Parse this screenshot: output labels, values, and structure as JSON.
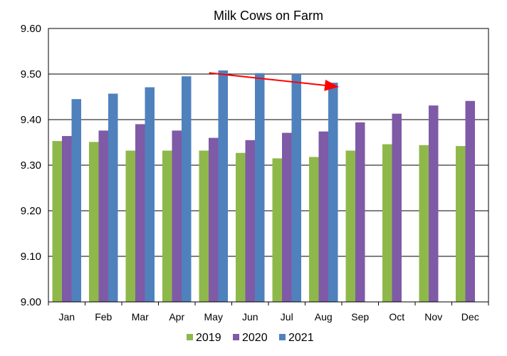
{
  "chart_data": {
    "type": "bar",
    "title": "Milk Cows on Farm",
    "xlabel": "",
    "ylabel": "",
    "categories": [
      "Jan",
      "Feb",
      "Mar",
      "Apr",
      "May",
      "Jun",
      "Jul",
      "Aug",
      "Sep",
      "Oct",
      "Nov",
      "Dec"
    ],
    "series": [
      {
        "name": "2019",
        "color": "#8FB84B",
        "values": [
          9.353,
          9.351,
          9.332,
          9.332,
          9.332,
          9.327,
          9.315,
          9.318,
          9.332,
          9.346,
          9.344,
          9.342
        ]
      },
      {
        "name": "2020",
        "color": "#7F5AA6",
        "values": [
          9.364,
          9.376,
          9.39,
          9.376,
          9.36,
          9.355,
          9.371,
          9.374,
          9.394,
          9.413,
          9.431,
          9.441
        ]
      },
      {
        "name": "2021",
        "color": "#4F81BD",
        "values": [
          9.445,
          9.457,
          9.471,
          9.495,
          9.508,
          9.502,
          9.5,
          9.481,
          null,
          null,
          null,
          null
        ]
      }
    ],
    "ylim": [
      9.0,
      9.6
    ],
    "yticks": [
      "9.00",
      "9.10",
      "9.20",
      "9.30",
      "9.40",
      "9.50",
      "9.60"
    ],
    "grid": true,
    "legend_position": "bottom",
    "annotation": {
      "type": "arrow",
      "color": "#FF0000",
      "from": {
        "x": "May",
        "y": 9.515
      },
      "to": {
        "x": "Aug",
        "y": 9.48
      }
    }
  }
}
